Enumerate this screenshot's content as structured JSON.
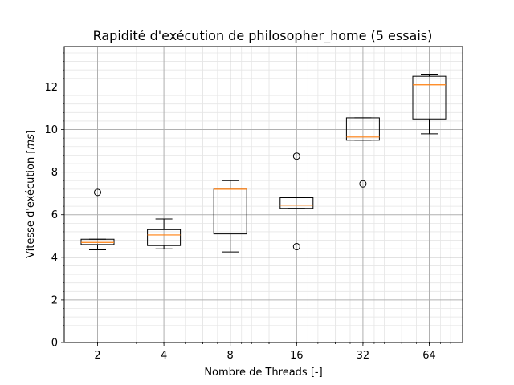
{
  "chart_data": {
    "type": "boxplot",
    "title": "Rapidité d'exécution de philosopher_home (5 essais)",
    "xlabel": "Nombre de Threads [-]",
    "ylabel": "Vitesse d'exécution [ms]",
    "ylabel_parts": {
      "before": "Vitesse d'exécution [",
      "unit": "ms",
      "after": "]"
    },
    "x_scale": "log2",
    "categories": [
      "2",
      "4",
      "8",
      "16",
      "32",
      "64"
    ],
    "ylim": [
      0,
      13.9
    ],
    "yticks": [
      0,
      2,
      4,
      6,
      8,
      10,
      12
    ],
    "y_minor_step": 0.4,
    "grid": {
      "major": true,
      "minor": true
    },
    "colors": {
      "box": "#000000",
      "median": "#ff7f0e",
      "major_grid": "#b0b0b0",
      "minor_grid": "#e6e6e6"
    },
    "boxes": [
      {
        "x": 2,
        "whisker_low": 4.35,
        "q1": 4.6,
        "median": 4.7,
        "q3": 4.85,
        "whisker_high": 4.85,
        "outliers": [
          7.05
        ]
      },
      {
        "x": 4,
        "whisker_low": 4.4,
        "q1": 4.55,
        "median": 5.05,
        "q3": 5.3,
        "whisker_high": 5.8,
        "outliers": []
      },
      {
        "x": 8,
        "whisker_low": 4.25,
        "q1": 5.1,
        "median": 7.2,
        "q3": 7.2,
        "whisker_high": 7.6,
        "outliers": []
      },
      {
        "x": 16,
        "whisker_low": 6.3,
        "q1": 6.3,
        "median": 6.45,
        "q3": 6.8,
        "whisker_high": 6.8,
        "outliers": [
          8.75,
          4.5
        ]
      },
      {
        "x": 32,
        "whisker_low": 9.5,
        "q1": 9.5,
        "median": 9.65,
        "q3": 10.55,
        "whisker_high": 10.55,
        "outliers": [
          7.45
        ]
      },
      {
        "x": 64,
        "whisker_low": 9.8,
        "q1": 10.5,
        "median": 12.1,
        "q3": 12.5,
        "whisker_high": 12.6,
        "outliers": []
      }
    ]
  }
}
